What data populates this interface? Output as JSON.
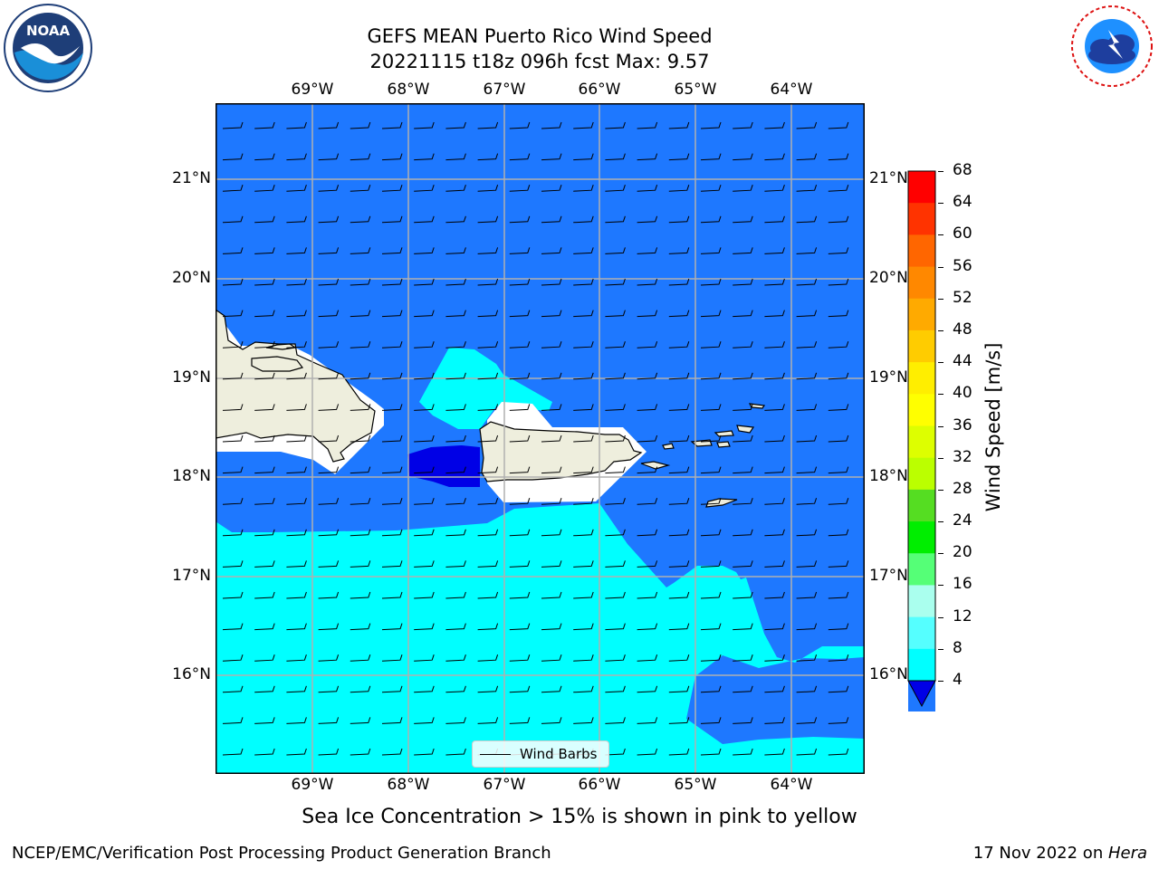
{
  "title": {
    "line1": "GEFS MEAN Puerto Rico Wind Speed",
    "line2": "20221115 t18z 096h fcst   Max: 9.57"
  },
  "logos": {
    "left": "noa-logo-icon",
    "right": "nws-logo-icon",
    "left_text": "NOAA"
  },
  "map": {
    "lon_labels": [
      "69°W",
      "68°W",
      "67°W",
      "66°W",
      "65°W",
      "64°W"
    ],
    "lat_labels": [
      "21°N",
      "20°N",
      "19°N",
      "18°N",
      "17°N",
      "16°N"
    ],
    "legend_label": "Wind Barbs",
    "colors": {
      "ocean_4_8": "#1e78ff",
      "ocean_8_12": "#00ffff",
      "ocean_below_4": "#0000e6",
      "land": "#eeeedd",
      "no_data": "#ffffff",
      "grid": "#b0b0b0"
    }
  },
  "colorbar": {
    "label": "Wind Speed [m/s]",
    "ticks": [
      "68",
      "64",
      "60",
      "56",
      "52",
      "48",
      "44",
      "40",
      "36",
      "32",
      "28",
      "24",
      "20",
      "16",
      "12",
      "8",
      "4"
    ],
    "colors": [
      "#ff0000",
      "#ff3300",
      "#ff6600",
      "#ff8800",
      "#ffaa00",
      "#ffcc00",
      "#ffee00",
      "#ffff00",
      "#ddff00",
      "#bbff00",
      "#55dd22",
      "#00ee00",
      "#55ff77",
      "#aaffee",
      "#55ffff",
      "#00ffff",
      "#1e78ff"
    ],
    "extend_color": "#0000e6"
  },
  "note": "Sea Ice Concentration > 15% is shown in pink to yellow",
  "footer": {
    "left": "NCEP/EMC/Verification Post Processing Product Generation Branch",
    "right_prefix": "17 Nov 2022 on ",
    "right_machine": "Hera"
  }
}
